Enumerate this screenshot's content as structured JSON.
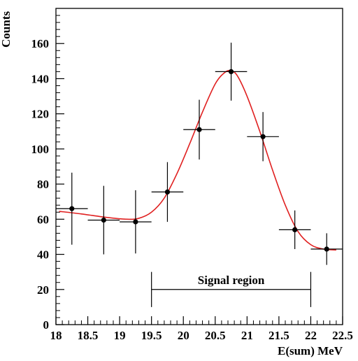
{
  "chart_data": {
    "type": "scatter",
    "title": "",
    "xlabel": "E(sum) MeV",
    "ylabel": "Counts",
    "xlim": [
      18,
      22.5
    ],
    "ylim": [
      0,
      180
    ],
    "x_ticks": [
      18,
      18.5,
      19,
      19.5,
      20,
      20.5,
      21,
      21.5,
      22,
      22.5
    ],
    "x_tick_labels": [
      "18",
      "18.5",
      "19",
      "19.5",
      "20",
      "20.5",
      "21",
      "21.5",
      "22",
      "22.5"
    ],
    "y_ticks": [
      0,
      20,
      40,
      60,
      80,
      100,
      120,
      140,
      160
    ],
    "y_tick_labels": [
      "0",
      "20",
      "40",
      "60",
      "80",
      "100",
      "120",
      "140",
      "160"
    ],
    "grid": false,
    "series": [
      {
        "points": [
          {
            "x": 18.25,
            "y": 66,
            "xerr": 0.25,
            "yerr": 20.5
          },
          {
            "x": 18.75,
            "y": 59.5,
            "xerr": 0.25,
            "yerr": 19.5
          },
          {
            "x": 19.25,
            "y": 58.5,
            "xerr": 0.25,
            "yerr": 18
          },
          {
            "x": 19.75,
            "y": 75.5,
            "xerr": 0.25,
            "yerr": 17
          },
          {
            "x": 20.25,
            "y": 111,
            "xerr": 0.25,
            "yerr": 17
          },
          {
            "x": 20.75,
            "y": 144,
            "xerr": 0.25,
            "yerr": 16.5
          },
          {
            "x": 21.25,
            "y": 107,
            "xerr": 0.25,
            "yerr": 14
          },
          {
            "x": 21.75,
            "y": 54,
            "xerr": 0.25,
            "yerr": 11
          },
          {
            "x": 22.25,
            "y": 43,
            "xerr": 0.25,
            "yerr": 9
          }
        ],
        "color": "#000000"
      },
      {
        "type": "line",
        "color": "#e02020",
        "x": [
          18.05,
          18.4,
          18.8,
          19.1,
          19.3,
          19.5,
          19.7,
          19.9,
          20.1,
          20.3,
          20.5,
          20.65,
          20.75,
          20.85,
          21.0,
          21.2,
          21.4,
          21.6,
          21.8,
          22.0,
          22.2,
          22.4
        ],
        "y": [
          64.5,
          63,
          61,
          60,
          60.5,
          64,
          72,
          86,
          103,
          121,
          137,
          143.5,
          144.5,
          141.5,
          130,
          110,
          88,
          68,
          53,
          45.5,
          43,
          42.5
        ]
      }
    ],
    "annotations": [
      {
        "text": "Signal region",
        "x_start": 19.5,
        "x_end": 22.0,
        "y_line": 20,
        "y_cap_low": 10,
        "y_cap_high": 30
      }
    ]
  }
}
